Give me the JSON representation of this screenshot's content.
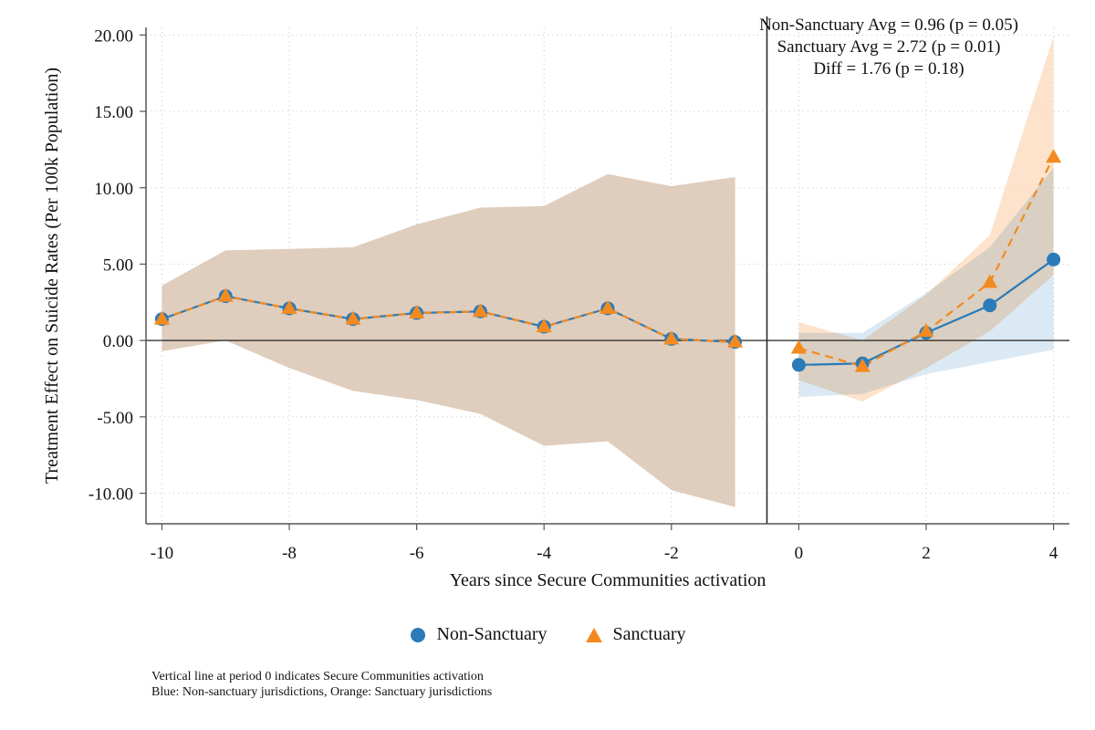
{
  "chart_data": {
    "type": "line",
    "title": "",
    "xlabel": "Years since Secure Communities activation",
    "ylabel": "Treatment Effect on Suicide Rates (Per 100k Population)",
    "xlim": [
      -10.25,
      4.25
    ],
    "ylim": [
      -12,
      20.5
    ],
    "x_ticks": [
      -10,
      -8,
      -6,
      -4,
      -2,
      0,
      2,
      4
    ],
    "x_tick_labels": [
      "-10",
      "-8",
      "-6",
      "-4",
      "-2",
      "0",
      "2",
      "4"
    ],
    "y_ticks": [
      -10,
      -5,
      0,
      5,
      10,
      15,
      20
    ],
    "y_tick_labels": [
      "-10.00",
      "-5.00",
      "0.00",
      "5.00",
      "10.00",
      "15.00",
      "20.00"
    ],
    "grid": true,
    "vline_x": -0.5,
    "hline_y": 0,
    "legend_position": "bottom-center",
    "series": [
      {
        "name": "Non-Sanctuary",
        "marker": "circle",
        "color": "#2a7bb8",
        "band_color": "#cfe1f0",
        "pre": {
          "x": [
            -10,
            -9,
            -8,
            -7,
            -6,
            -5,
            -4,
            -3,
            -2,
            -1
          ],
          "y": [
            1.4,
            2.9,
            2.1,
            1.4,
            1.8,
            1.9,
            0.9,
            2.1,
            0.1,
            -0.1
          ],
          "lower": [
            -0.7,
            0.0,
            -1.8,
            -3.3,
            -3.9,
            -4.8,
            -6.9,
            -6.6,
            -9.8,
            -10.9
          ],
          "upper": [
            3.6,
            5.9,
            6.0,
            6.1,
            7.6,
            8.7,
            8.8,
            10.9,
            10.1,
            10.7
          ]
        },
        "post": {
          "x": [
            0,
            1,
            2,
            3,
            4
          ],
          "y": [
            -1.6,
            -1.5,
            0.5,
            2.3,
            5.3
          ],
          "lower": [
            -3.7,
            -3.5,
            -2.2,
            -1.4,
            -0.6
          ],
          "upper": [
            0.5,
            0.5,
            3.1,
            6.1,
            11.3
          ]
        }
      },
      {
        "name": "Sanctuary",
        "marker": "triangle",
        "color": "#f28a1f",
        "band_color": "#fde0c6",
        "pre": {
          "x": [
            -10,
            -9,
            -8,
            -7,
            -6,
            -5,
            -4,
            -3,
            -2,
            -1
          ],
          "y": [
            1.4,
            2.9,
            2.1,
            1.4,
            1.8,
            1.9,
            0.9,
            2.1,
            0.1,
            -0.1
          ],
          "lower": [
            -0.7,
            0.0,
            -1.8,
            -3.3,
            -3.9,
            -4.8,
            -6.9,
            -6.6,
            -9.8,
            -10.9
          ],
          "upper": [
            3.6,
            5.9,
            6.0,
            6.1,
            7.6,
            8.7,
            8.8,
            10.9,
            10.1,
            10.7
          ]
        },
        "post": {
          "x": [
            0,
            1,
            2,
            3,
            4
          ],
          "y": [
            -0.5,
            -1.7,
            0.6,
            3.8,
            12.0
          ],
          "lower": [
            -2.6,
            -4.0,
            -1.8,
            0.6,
            4.3
          ],
          "upper": [
            1.2,
            0.0,
            3.0,
            6.9,
            19.9
          ]
        }
      }
    ],
    "pre_band_color": "#dfcdbd",
    "annotations": [
      "Non-Sanctuary Avg = 0.96 (p = 0.05)",
      "Sanctuary Avg = 2.72 (p = 0.01)",
      "Diff = 1.76 (p = 0.18)"
    ]
  },
  "notes": [
    "Vertical line at period 0 indicates Secure Communities activation",
    "Blue: Non-sanctuary jurisdictions, Orange: Sanctuary jurisdictions"
  ]
}
